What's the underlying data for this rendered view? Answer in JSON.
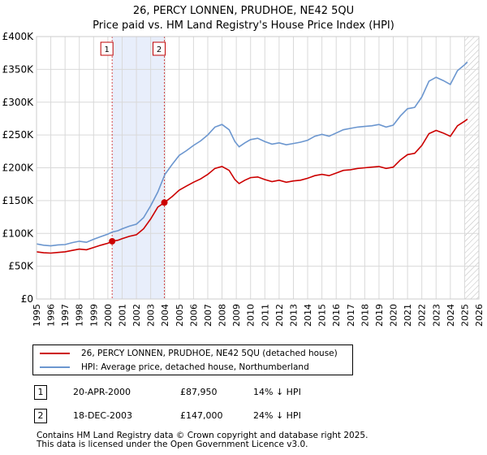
{
  "header": {
    "title_line1": "26, PERCY LONNEN, PRUDHOE, NE42 5QU",
    "title_line2": "Price paid vs. HM Land Registry's House Price Index (HPI)"
  },
  "legend": {
    "items": [
      {
        "label": "26, PERCY LONNEN, PRUDHOE, NE42 5QU (detached house)",
        "color": "#cc0000"
      },
      {
        "label": "HPI: Average price, detached house, Northumberland",
        "color": "#6b96cf"
      }
    ]
  },
  "transactions": [
    {
      "num": "1",
      "date": "20-APR-2000",
      "price": "£87,950",
      "hpi": "14% ↓ HPI"
    },
    {
      "num": "2",
      "date": "18-DEC-2003",
      "price": "£147,000",
      "hpi": "24% ↓ HPI"
    }
  ],
  "footer": {
    "line1": "Contains HM Land Registry data © Crown copyright and database right 2025.",
    "line2": "This data is licensed under the Open Government Licence v3.0."
  },
  "colors": {
    "property": "#cc0000",
    "hpi": "#6b96cf",
    "shade": "#e8eefb",
    "grid": "#d9d9d9"
  },
  "chart_data": {
    "type": "line",
    "title": "26, PERCY LONNEN, PRUDHOE, NE42 5QU",
    "subtitle": "Price paid vs. HM Land Registry's House Price Index (HPI)",
    "xlabel": "",
    "ylabel": "",
    "xlim": [
      1995,
      2026
    ],
    "ylim": [
      0,
      400000
    ],
    "x_ticks": [
      1995,
      1996,
      1997,
      1998,
      1999,
      2000,
      2001,
      2002,
      2003,
      2004,
      2005,
      2006,
      2007,
      2008,
      2009,
      2010,
      2011,
      2012,
      2013,
      2014,
      2015,
      2016,
      2017,
      2018,
      2019,
      2020,
      2021,
      2022,
      2023,
      2024,
      2025,
      2026
    ],
    "y_ticks": [
      {
        "value": 0,
        "label": "£0"
      },
      {
        "value": 50000,
        "label": "£50K"
      },
      {
        "value": 100000,
        "label": "£100K"
      },
      {
        "value": 150000,
        "label": "£150K"
      },
      {
        "value": 200000,
        "label": "£200K"
      },
      {
        "value": 250000,
        "label": "£250K"
      },
      {
        "value": 300000,
        "label": "£300K"
      },
      {
        "value": 350000,
        "label": "£350K"
      },
      {
        "value": 400000,
        "label": "£400K"
      }
    ],
    "grid": true,
    "shaded_region": {
      "from": 2000.3,
      "to": 2003.96
    },
    "future_hatch_from": 2025.0,
    "sales": [
      {
        "label": "1",
        "x": 2000.3,
        "y": 87950
      },
      {
        "label": "2",
        "x": 2003.96,
        "y": 147000
      }
    ],
    "series": [
      {
        "name": "HPI: Average price, detached house, Northumberland",
        "color": "#6b96cf",
        "points": [
          [
            1995.0,
            84000
          ],
          [
            1995.5,
            82000
          ],
          [
            1996.0,
            81000
          ],
          [
            1996.5,
            82500
          ],
          [
            1997.0,
            83000
          ],
          [
            1997.5,
            86000
          ],
          [
            1998.0,
            88000
          ],
          [
            1998.5,
            86500
          ],
          [
            1999.0,
            91000
          ],
          [
            1999.5,
            95000
          ],
          [
            2000.0,
            99000
          ],
          [
            2000.3,
            102000
          ],
          [
            2000.7,
            104000
          ],
          [
            2001.0,
            107000
          ],
          [
            2001.5,
            111000
          ],
          [
            2002.0,
            114000
          ],
          [
            2002.5,
            124000
          ],
          [
            2003.0,
            142000
          ],
          [
            2003.5,
            163000
          ],
          [
            2004.0,
            190000
          ],
          [
            2004.5,
            205000
          ],
          [
            2005.0,
            219000
          ],
          [
            2005.5,
            226000
          ],
          [
            2006.0,
            234000
          ],
          [
            2006.5,
            241000
          ],
          [
            2007.0,
            250000
          ],
          [
            2007.5,
            262000
          ],
          [
            2008.0,
            266000
          ],
          [
            2008.5,
            258000
          ],
          [
            2008.9,
            240000
          ],
          [
            2009.2,
            232000
          ],
          [
            2009.6,
            238000
          ],
          [
            2010.0,
            243000
          ],
          [
            2010.5,
            245000
          ],
          [
            2011.0,
            240000
          ],
          [
            2011.5,
            236000
          ],
          [
            2012.0,
            238000
          ],
          [
            2012.5,
            235000
          ],
          [
            2013.0,
            237000
          ],
          [
            2013.5,
            239000
          ],
          [
            2014.0,
            242000
          ],
          [
            2014.5,
            248000
          ],
          [
            2015.0,
            251000
          ],
          [
            2015.5,
            248000
          ],
          [
            2016.0,
            253000
          ],
          [
            2016.5,
            258000
          ],
          [
            2017.0,
            260000
          ],
          [
            2017.5,
            262000
          ],
          [
            2018.0,
            263000
          ],
          [
            2018.5,
            264000
          ],
          [
            2019.0,
            266000
          ],
          [
            2019.5,
            262000
          ],
          [
            2020.0,
            265000
          ],
          [
            2020.5,
            279000
          ],
          [
            2021.0,
            290000
          ],
          [
            2021.5,
            292000
          ],
          [
            2022.0,
            308000
          ],
          [
            2022.5,
            332000
          ],
          [
            2023.0,
            338000
          ],
          [
            2023.5,
            333000
          ],
          [
            2024.0,
            327000
          ],
          [
            2024.5,
            348000
          ],
          [
            2025.0,
            357000
          ],
          [
            2025.2,
            361000
          ]
        ]
      },
      {
        "name": "26, PERCY LONNEN, PRUDHOE, NE42 5QU (detached house)",
        "color": "#cc0000",
        "points": [
          [
            1995.0,
            72000
          ],
          [
            1995.5,
            70500
          ],
          [
            1996.0,
            70000
          ],
          [
            1996.5,
            71000
          ],
          [
            1997.0,
            72000
          ],
          [
            1997.5,
            74000
          ],
          [
            1998.0,
            76000
          ],
          [
            1998.5,
            75000
          ],
          [
            1999.0,
            78500
          ],
          [
            1999.5,
            82000
          ],
          [
            2000.0,
            85000
          ],
          [
            2000.3,
            87950
          ],
          [
            2000.7,
            89500
          ],
          [
            2001.0,
            92000
          ],
          [
            2001.5,
            95500
          ],
          [
            2002.0,
            98000
          ],
          [
            2002.5,
            107000
          ],
          [
            2003.0,
            122000
          ],
          [
            2003.5,
            140000
          ],
          [
            2003.96,
            147000
          ],
          [
            2004.5,
            156000
          ],
          [
            2005.0,
            166000
          ],
          [
            2005.5,
            172000
          ],
          [
            2006.0,
            178000
          ],
          [
            2006.5,
            183000
          ],
          [
            2007.0,
            190000
          ],
          [
            2007.5,
            199000
          ],
          [
            2008.0,
            202000
          ],
          [
            2008.5,
            196000
          ],
          [
            2008.9,
            182000
          ],
          [
            2009.2,
            176000
          ],
          [
            2009.6,
            181000
          ],
          [
            2010.0,
            185000
          ],
          [
            2010.5,
            186000
          ],
          [
            2011.0,
            182000
          ],
          [
            2011.5,
            179000
          ],
          [
            2012.0,
            181000
          ],
          [
            2012.5,
            178000
          ],
          [
            2013.0,
            180000
          ],
          [
            2013.5,
            181000
          ],
          [
            2014.0,
            184000
          ],
          [
            2014.5,
            188000
          ],
          [
            2015.0,
            190000
          ],
          [
            2015.5,
            188000
          ],
          [
            2016.0,
            192000
          ],
          [
            2016.5,
            196000
          ],
          [
            2017.0,
            197000
          ],
          [
            2017.5,
            199000
          ],
          [
            2018.0,
            200000
          ],
          [
            2018.5,
            201000
          ],
          [
            2019.0,
            202000
          ],
          [
            2019.5,
            199000
          ],
          [
            2020.0,
            201000
          ],
          [
            2020.5,
            212000
          ],
          [
            2021.0,
            220000
          ],
          [
            2021.5,
            222000
          ],
          [
            2022.0,
            234000
          ],
          [
            2022.5,
            252000
          ],
          [
            2023.0,
            257000
          ],
          [
            2023.5,
            253000
          ],
          [
            2024.0,
            248000
          ],
          [
            2024.5,
            264000
          ],
          [
            2025.0,
            271000
          ],
          [
            2025.2,
            274000
          ]
        ]
      }
    ]
  }
}
